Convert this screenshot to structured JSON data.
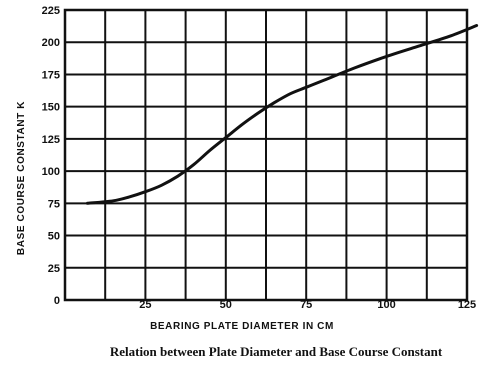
{
  "chart_data": {
    "type": "line",
    "title": "",
    "caption": "Relation between Plate Diameter and Base Course Constant",
    "xlabel": "BEARING PLATE DIAMETER IN CM",
    "ylabel": "BASE COURSE CONSTANT K",
    "xlim": [
      0,
      125
    ],
    "ylim": [
      0,
      225
    ],
    "x_ticks": [
      {
        "value": 25,
        "label": "25"
      },
      {
        "value": 50,
        "label": "50"
      },
      {
        "value": 75,
        "label": "75"
      },
      {
        "value": 100,
        "label": "100"
      },
      {
        "value": 125,
        "label": "125"
      }
    ],
    "y_ticks": [
      {
        "value": 0,
        "label": "0"
      },
      {
        "value": 25,
        "label": "25"
      },
      {
        "value": 50,
        "label": "50"
      },
      {
        "value": 75,
        "label": "75"
      },
      {
        "value": 100,
        "label": "100"
      },
      {
        "value": 125,
        "label": "125"
      },
      {
        "value": 150,
        "label": "150"
      },
      {
        "value": 175,
        "label": "175"
      },
      {
        "value": 200,
        "label": "200"
      },
      {
        "value": 225,
        "label": "225"
      }
    ],
    "grid": true,
    "grid_x_values": [
      0,
      12.5,
      25,
      37.5,
      50,
      62.5,
      75,
      87.5,
      100,
      112.5,
      125
    ],
    "grid_y_values": [
      0,
      25,
      50,
      75,
      100,
      125,
      150,
      175,
      200,
      225
    ],
    "series": [
      {
        "x": [
          7,
          15,
          20,
          25,
          30,
          35,
          40,
          45,
          50,
          55,
          60,
          65,
          70,
          75,
          80,
          90,
          100,
          110,
          120,
          128
        ],
        "y": [
          75,
          77,
          80,
          84,
          89,
          96,
          105,
          116,
          126,
          136,
          145,
          153,
          160,
          165,
          170,
          180,
          189,
          197,
          205,
          213
        ]
      }
    ],
    "colors": {
      "line": "#111111",
      "grid": "#111111",
      "background": "#ffffff"
    }
  }
}
